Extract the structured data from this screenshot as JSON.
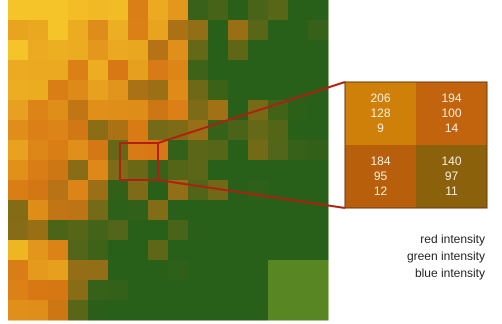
{
  "zoom": {
    "cells": [
      {
        "red": 206,
        "green": 128,
        "blue": 9
      },
      {
        "red": 194,
        "green": 100,
        "blue": 14
      },
      {
        "red": 184,
        "green": 95,
        "blue": 12
      },
      {
        "red": 140,
        "green": 97,
        "blue": 11
      }
    ]
  },
  "legend": [
    "red intensity",
    "green intensity",
    "blue intensity"
  ]
}
